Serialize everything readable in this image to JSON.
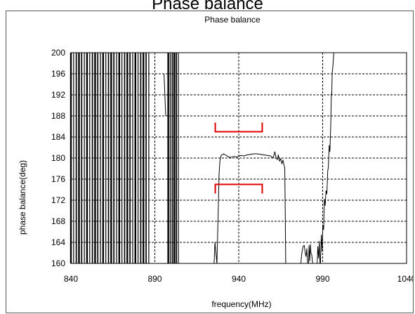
{
  "page": {
    "title": "Phase balance"
  },
  "chart_data": {
    "type": "line",
    "title": "Phase balance",
    "xlabel": "frequency(MHz)",
    "ylabel": "phase balance(deg)",
    "xlim": [
      840,
      1040
    ],
    "ylim": [
      160,
      200
    ],
    "x_ticks": [
      840,
      890,
      940,
      990,
      1040
    ],
    "y_ticks": [
      160,
      164,
      168,
      172,
      176,
      180,
      184,
      188,
      192,
      196,
      200
    ],
    "grid": true,
    "legend": "none",
    "colors": {
      "trace": "#000000",
      "spec_limits": "#e00000",
      "grid": "#000000"
    },
    "noise_bands": [
      {
        "x_start": 840,
        "x_end": 888,
        "spacing": 1.6
      },
      {
        "x_start": 898,
        "x_end": 905,
        "spacing": 1.2
      }
    ],
    "series": [
      {
        "values": [
          [
            895.5,
            196
          ],
          [
            896.5,
            188
          ],
          [
            925.3,
            160
          ],
          [
            925.8,
            164
          ],
          [
            927,
            160
          ],
          [
            927.8,
            170
          ],
          [
            928.3,
            177
          ],
          [
            928.8,
            179.5
          ],
          [
            929.5,
            180.5
          ],
          [
            931,
            180.8
          ],
          [
            933,
            180.4
          ],
          [
            935,
            180.1
          ],
          [
            937,
            180.3
          ],
          [
            939,
            180.2
          ],
          [
            941,
            180.5
          ],
          [
            943,
            180.4
          ],
          [
            945,
            180.6
          ],
          [
            947,
            180.7
          ],
          [
            949,
            180.8
          ],
          [
            951,
            180.8
          ],
          [
            953,
            180.7
          ],
          [
            955,
            180.6
          ],
          [
            957,
            180.5
          ],
          [
            959,
            180.4
          ],
          [
            960.5,
            180
          ],
          [
            961.5,
            181.2
          ],
          [
            962.3,
            180
          ],
          [
            963,
            179.7
          ],
          [
            963.6,
            180.6
          ],
          [
            964.3,
            179.4
          ],
          [
            965,
            179.9
          ],
          [
            965.7,
            178.9
          ],
          [
            966.3,
            179.6
          ],
          [
            967,
            178.6
          ],
          [
            967.4,
            178.2
          ],
          [
            967.7,
            170
          ],
          [
            968,
            160
          ],
          [
            977,
            160
          ],
          [
            977.6,
            162
          ],
          [
            978.4,
            163.3
          ],
          [
            979.1,
            163.4
          ],
          [
            979.6,
            162
          ],
          [
            980.1,
            161.3
          ],
          [
            980.6,
            162.8
          ],
          [
            981,
            160
          ],
          [
            981.6,
            160
          ],
          [
            981.9,
            163.4
          ],
          [
            982.3,
            160.5
          ],
          [
            982.7,
            163.6
          ],
          [
            983,
            162
          ],
          [
            983.5,
            161.6
          ],
          [
            984,
            160
          ],
          [
            986.7,
            160
          ],
          [
            987.1,
            163.2
          ],
          [
            987.6,
            161
          ],
          [
            988,
            164.2
          ],
          [
            988.4,
            160
          ],
          [
            988.7,
            160
          ],
          [
            989.2,
            165.4
          ],
          [
            989.7,
            162.3
          ],
          [
            990.1,
            167.2
          ],
          [
            990.6,
            166.4
          ],
          [
            991,
            172.2
          ],
          [
            991.5,
            171
          ],
          [
            992,
            173.8
          ],
          [
            992.5,
            173.2
          ],
          [
            993,
            177.5
          ],
          [
            993.4,
            178.3
          ],
          [
            993.9,
            182.4
          ],
          [
            994.3,
            181.2
          ],
          [
            994.8,
            186.2
          ],
          [
            995.2,
            192.2
          ],
          [
            995.4,
            192
          ],
          [
            995.7,
            196.2
          ],
          [
            996.1,
            197.5
          ],
          [
            996.6,
            200
          ]
        ]
      }
    ],
    "spec_limits": [
      {
        "x_start": 926,
        "x_end": 954,
        "value": 185,
        "tick_direction": "up"
      },
      {
        "x_start": 926,
        "x_end": 954,
        "value": 175,
        "tick_direction": "down"
      }
    ]
  }
}
